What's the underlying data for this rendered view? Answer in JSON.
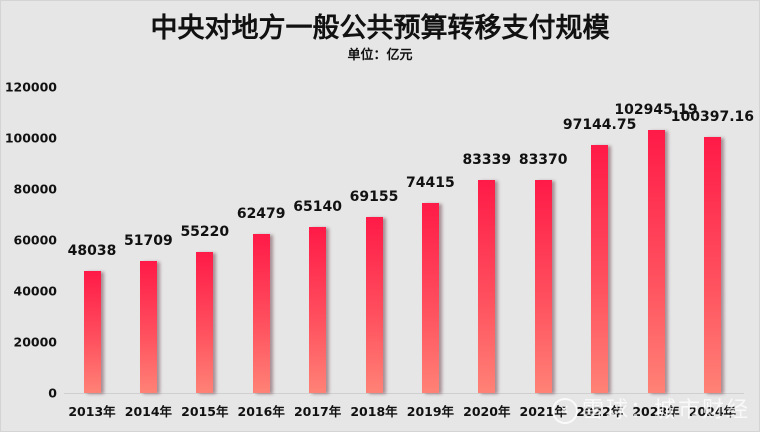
{
  "chart_data": {
    "type": "bar",
    "title": "中央对地方一般公共预算转移支付规模",
    "subtitle": "单位：亿元",
    "xlabel": "",
    "ylabel": "",
    "ylim": [
      0,
      120000
    ],
    "yticks": [
      "0",
      "20000",
      "40000",
      "60000",
      "80000",
      "100000",
      "120000"
    ],
    "grid": false,
    "legend": null,
    "categories": [
      "2013年",
      "2014年",
      "2015年",
      "2016年",
      "2017年",
      "2018年",
      "2019年",
      "2020年",
      "2021年",
      "2022年",
      "2023年",
      "2024年"
    ],
    "values": [
      48038,
      51709,
      55220,
      62479,
      65140,
      69155,
      74415,
      83339,
      83370,
      97144.75,
      102945.19,
      100397.16
    ],
    "value_labels": [
      "48038",
      "51709",
      "55220",
      "62479",
      "65140",
      "69155",
      "74415",
      "83339",
      "83370",
      "97144.75",
      "102945.19",
      "100397.16"
    ],
    "bar_color_top": "#ff1a47",
    "bar_color_bottom": "#ff8276"
  },
  "watermark": {
    "logo": "snowball-logo-icon",
    "text": "雪球：城市财经"
  }
}
